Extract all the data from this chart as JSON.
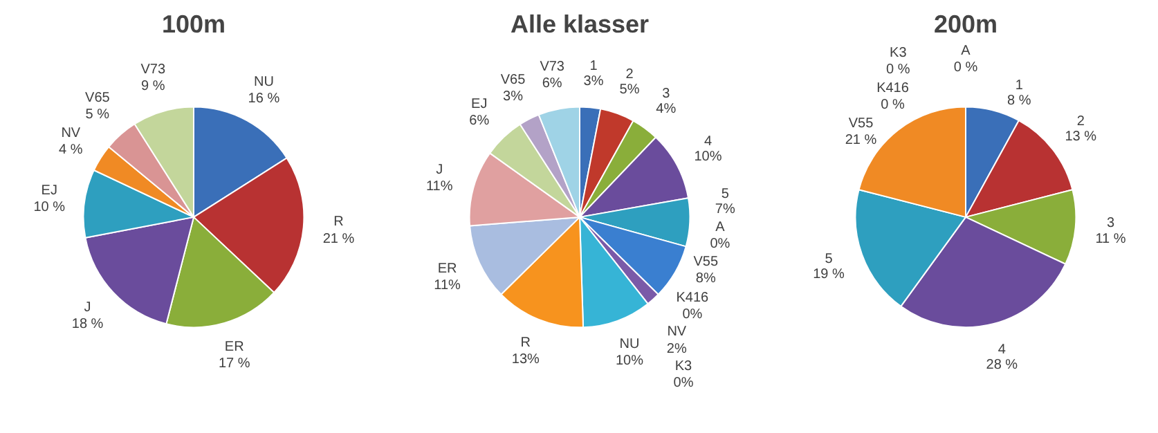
{
  "chart_data": [
    {
      "type": "pie",
      "title": "100m",
      "categories": [
        "NU",
        "R",
        "ER",
        "J",
        "EJ",
        "NV",
        "V65",
        "V73"
      ],
      "values": [
        16,
        21,
        17,
        18,
        10,
        4,
        5,
        9
      ],
      "value_labels": [
        "16 %",
        "21 %",
        "17 %",
        "18 %",
        "10 %",
        "4 %",
        "5 %",
        "9 %"
      ],
      "colors": [
        "#3a6fb8",
        "#b83232",
        "#8aae3a",
        "#6a4c9c",
        "#2e9fbf",
        "#f08a24",
        "#d99494",
        "#c3d69b"
      ]
    },
    {
      "type": "pie",
      "title": "Alle klasser",
      "categories": [
        "1",
        "2",
        "3",
        "4",
        "5",
        "A",
        "V55",
        "K3",
        "K416",
        "NV",
        "NU",
        "R",
        "ER",
        "J",
        "EJ",
        "V65",
        "V73"
      ],
      "values": [
        3,
        5,
        4,
        10,
        7,
        0,
        8,
        0,
        0,
        2,
        10,
        13,
        11,
        11,
        6,
        3,
        6
      ],
      "value_labels": [
        "3%",
        "5%",
        "4%",
        "10%",
        "7%",
        "0%",
        "8%",
        "0%",
        "0%",
        "2%",
        "10%",
        "13%",
        "11%",
        "11%",
        "6%",
        "3%",
        "6%"
      ],
      "colors": [
        "#3a6fb8",
        "#c0392b",
        "#8aae3a",
        "#6a4c9c",
        "#2e9fbf",
        "#f08a24",
        "#3a7fd0",
        "#8aae3a",
        "#b83232",
        "#7a5aa8",
        "#36b4d6",
        "#f7931e",
        "#a9bde0",
        "#e0a0a0",
        "#c3d69b",
        "#b3a2c7",
        "#9fd3e6"
      ]
    },
    {
      "type": "pie",
      "title": "200m",
      "categories": [
        "1",
        "2",
        "3",
        "4",
        "5",
        "V55",
        "A",
        "K3",
        "K416"
      ],
      "values": [
        8,
        13,
        11,
        28,
        19,
        21,
        0,
        0,
        0
      ],
      "value_labels": [
        "8 %",
        "13 %",
        "11 %",
        "28 %",
        "19 %",
        "21 %",
        "0 %",
        "0 %",
        "0 %"
      ],
      "colors": [
        "#3a6fb8",
        "#b83232",
        "#8aae3a",
        "#6a4c9c",
        "#2e9fbf",
        "#f08a24",
        "#d99494",
        "#c3d69b",
        "#7a5aa8"
      ]
    }
  ]
}
